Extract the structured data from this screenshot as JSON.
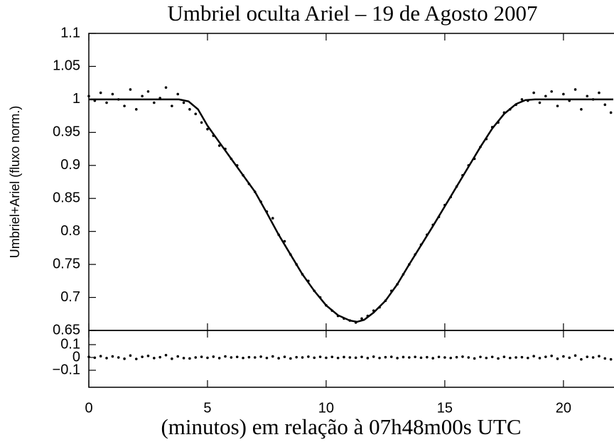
{
  "chart_data": [
    {
      "type": "scatter",
      "title": "Umbriel oculta Ariel – 19 de Agosto 2007",
      "ylabel": "Umbriel+Ariel (fluxo norm.)",
      "color": "#000000",
      "xlim": [
        0,
        22.1
      ],
      "ylim": [
        0.65,
        1.1
      ],
      "yticks": [
        1.1,
        1.05,
        1,
        0.95,
        0.9,
        0.85,
        0.8,
        0.75,
        0.7,
        0.65
      ],
      "x": [
        0,
        0.25,
        0.5,
        0.75,
        1,
        1.25,
        1.5,
        1.75,
        2,
        2.25,
        2.5,
        2.75,
        3,
        3.25,
        3.5,
        3.75,
        4,
        4.25,
        4.5,
        4.75,
        5,
        5.25,
        5.5,
        5.75,
        6,
        6.25,
        6.5,
        6.75,
        7,
        7.25,
        7.5,
        7.75,
        8,
        8.25,
        8.5,
        8.75,
        9,
        9.25,
        9.5,
        9.75,
        10,
        10.25,
        10.5,
        10.75,
        11,
        11.25,
        11.5,
        11.75,
        12,
        12.25,
        12.5,
        12.75,
        13,
        13.25,
        13.5,
        13.75,
        14,
        14.25,
        14.5,
        14.75,
        15,
        15.25,
        15.5,
        15.75,
        16,
        16.25,
        16.5,
        16.75,
        17,
        17.25,
        17.5,
        17.75,
        18,
        18.25,
        18.5,
        18.75,
        19,
        19.25,
        19.5,
        19.75,
        20,
        20.25,
        20.5,
        20.75,
        21,
        21.25,
        21.5,
        21.75,
        22
      ],
      "values": [
        1.005,
        0.998,
        1.01,
        0.995,
        1.008,
        1.0,
        0.99,
        1.015,
        0.985,
        1.005,
        1.012,
        0.995,
        1.002,
        1.018,
        0.99,
        1.008,
        0.995,
        0.985,
        0.978,
        0.965,
        0.955,
        0.945,
        0.93,
        0.925,
        0.91,
        0.9,
        0.885,
        0.872,
        0.86,
        0.845,
        0.83,
        0.82,
        0.795,
        0.785,
        0.765,
        0.75,
        0.735,
        0.725,
        0.71,
        0.7,
        0.688,
        0.68,
        0.672,
        0.668,
        0.665,
        0.662,
        0.668,
        0.672,
        0.68,
        0.685,
        0.695,
        0.71,
        0.72,
        0.735,
        0.75,
        0.765,
        0.78,
        0.795,
        0.81,
        0.822,
        0.84,
        0.852,
        0.868,
        0.885,
        0.9,
        0.91,
        0.928,
        0.94,
        0.958,
        0.965,
        0.98,
        0.985,
        0.992,
        1.0,
        0.998,
        1.01,
        0.995,
        1.005,
        1.012,
        0.99,
        1.008,
        0.998,
        1.015,
        0.985,
        1.005,
        1.0,
        1.01,
        0.992,
        0.98
      ],
      "fit": {
        "x": [
          0,
          3.8,
          4.2,
          4.6,
          5,
          5.5,
          6,
          6.5,
          7,
          7.5,
          8,
          8.5,
          9,
          9.5,
          10,
          10.5,
          11,
          11.3,
          11.6,
          12,
          12.5,
          13,
          13.5,
          14,
          14.5,
          15,
          15.5,
          16,
          16.5,
          17,
          17.5,
          18,
          18.4,
          18.8,
          22.1
        ],
        "values": [
          1.0,
          1.0,
          0.997,
          0.985,
          0.96,
          0.935,
          0.91,
          0.885,
          0.86,
          0.828,
          0.795,
          0.765,
          0.735,
          0.71,
          0.688,
          0.673,
          0.665,
          0.663,
          0.666,
          0.677,
          0.695,
          0.72,
          0.75,
          0.779,
          0.808,
          0.838,
          0.868,
          0.898,
          0.928,
          0.956,
          0.978,
          0.993,
          0.999,
          1.0,
          1.0
        ]
      }
    },
    {
      "type": "scatter",
      "xlabel": "(minutos) em relação à 07h48m00s UTC",
      "color": "#000000",
      "xlim": [
        0,
        22.1
      ],
      "ylim": [
        -0.233,
        0.211
      ],
      "xticks": [
        0,
        5,
        10,
        15,
        20
      ],
      "yticks": [
        0.1,
        0,
        {
          "value": -0.1,
          "label": "−0.1"
        }
      ],
      "x": [
        0,
        0.25,
        0.5,
        0.75,
        1,
        1.25,
        1.5,
        1.75,
        2,
        2.25,
        2.5,
        2.75,
        3,
        3.25,
        3.5,
        3.75,
        4,
        4.25,
        4.5,
        4.75,
        5,
        5.25,
        5.5,
        5.75,
        6,
        6.25,
        6.5,
        6.75,
        7,
        7.25,
        7.5,
        7.75,
        8,
        8.25,
        8.5,
        8.75,
        9,
        9.25,
        9.5,
        9.75,
        10,
        10.25,
        10.5,
        10.75,
        11,
        11.25,
        11.5,
        11.75,
        12,
        12.25,
        12.5,
        12.75,
        13,
        13.25,
        13.5,
        13.75,
        14,
        14.25,
        14.5,
        14.75,
        15,
        15.25,
        15.5,
        15.75,
        16,
        16.25,
        16.5,
        16.75,
        17,
        17.25,
        17.5,
        17.75,
        18,
        18.25,
        18.5,
        18.75,
        19,
        19.25,
        19.5,
        19.75,
        20,
        20.25,
        20.5,
        20.75,
        21,
        21.25,
        21.5,
        21.75,
        22
      ],
      "values": [
        0.005,
        -0.002,
        0.01,
        -0.005,
        0.008,
        0.0,
        -0.01,
        0.015,
        -0.012,
        0.005,
        0.012,
        -0.005,
        0.002,
        0.018,
        -0.01,
        0.008,
        -0.005,
        -0.008,
        0.0,
        0.005,
        -0.003,
        0.006,
        -0.005,
        0.008,
        0.0,
        0.004,
        -0.004,
        0.002,
        0.0,
        0.006,
        -0.004,
        0.008,
        -0.006,
        0.005,
        -0.008,
        0.002,
        0.0,
        0.006,
        -0.002,
        0.005,
        -0.003,
        0.004,
        -0.004,
        0.003,
        0.0,
        -0.002,
        0.004,
        -0.005,
        0.006,
        -0.004,
        0.002,
        0.005,
        -0.005,
        0.003,
        0.0,
        0.004,
        -0.002,
        0.002,
        -0.006,
        0.004,
        0.0,
        -0.004,
        0.002,
        0.006,
        0.0,
        -0.008,
        0.004,
        -0.004,
        0.004,
        -0.008,
        0.005,
        -0.004,
        0.0,
        0.002,
        -0.004,
        0.01,
        -0.005,
        0.005,
        0.012,
        -0.01,
        0.008,
        -0.002,
        0.015,
        -0.015,
        0.005,
        0.0,
        0.01,
        -0.008,
        -0.015
      ]
    }
  ]
}
